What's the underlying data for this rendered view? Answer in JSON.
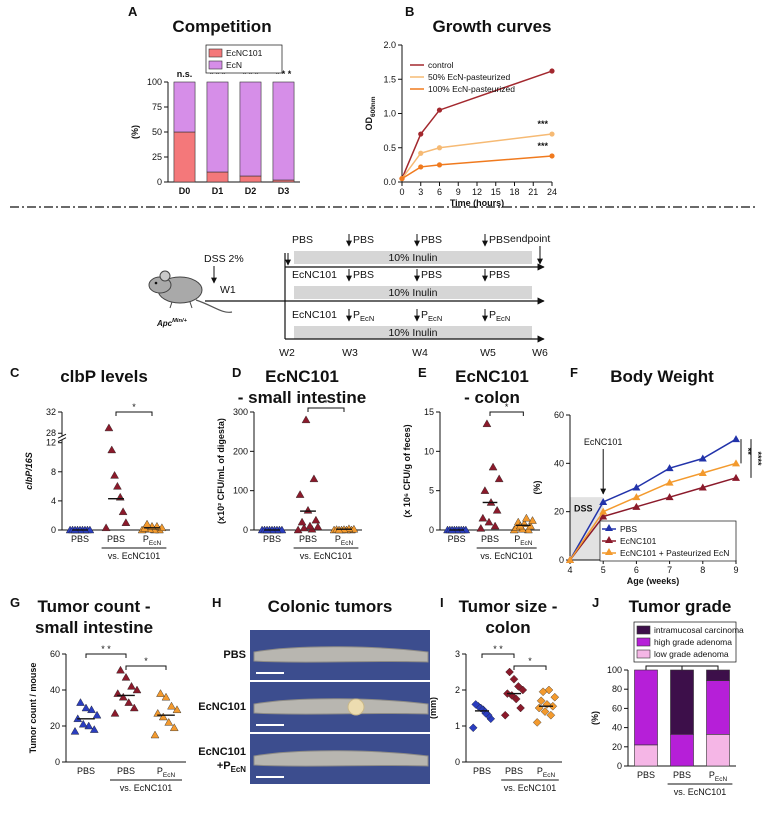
{
  "chart_data": [
    {
      "panel": "A",
      "type": "stacked_bar",
      "title": [
        "Competition"
      ],
      "ylabel": "(%)",
      "categories": [
        "D0",
        "D1",
        "D2",
        "D3"
      ],
      "series": [
        {
          "name": "EcNC101",
          "color": "#f4787a",
          "values": [
            50,
            10,
            6,
            2
          ]
        },
        {
          "name": "EcN",
          "color": "#d68ee8",
          "values": [
            50,
            90,
            94,
            98
          ]
        }
      ],
      "ylim": [
        0,
        100
      ],
      "yticks": [
        0,
        25,
        50,
        75,
        100
      ],
      "bar_annotations": [
        "n.s.",
        "* * *",
        "* * *",
        "* * *"
      ],
      "legend": "top"
    },
    {
      "panel": "B",
      "type": "line",
      "title": [
        "Growth curves"
      ],
      "xlabel": "Time (hours)",
      "ylabel": "OD",
      "ylabel_sub": "600nm",
      "x": [
        0,
        3,
        6,
        24
      ],
      "series": [
        {
          "name": "control",
          "color": "#a3282e",
          "values": [
            0.05,
            0.7,
            1.05,
            1.62
          ]
        },
        {
          "name": "50% EcN-pasteurized",
          "color": "#f6ba74",
          "values": [
            0.05,
            0.42,
            0.5,
            0.7
          ]
        },
        {
          "name": "100% EcN-pasteurized",
          "color": "#f07a1e",
          "values": [
            0.05,
            0.22,
            0.25,
            0.38
          ]
        }
      ],
      "xlim": [
        0,
        24
      ],
      "xticks": [
        0,
        3,
        6,
        9,
        12,
        15,
        18,
        21,
        24
      ],
      "ylim": [
        0,
        2
      ],
      "yticks": [
        {
          "value": 0,
          "label": "0.0"
        },
        {
          "value": 0.5,
          "label": "0.5"
        },
        {
          "value": 1,
          "label": "1.0"
        },
        {
          "value": 1.5,
          "label": "1.5"
        },
        {
          "value": 2,
          "label": "2.0"
        }
      ],
      "marker": "circle",
      "legend": "upper left",
      "annotations": [
        "***",
        "***"
      ]
    },
    {
      "panel": "C",
      "type": "dot",
      "title": [
        "clbP levels"
      ],
      "ylabel": "clbP/16S",
      "ylabel_italic": true,
      "groups": [
        {
          "name": "PBS",
          "color": "#2a3dbf",
          "values": [
            0,
            0,
            0,
            0,
            0,
            0,
            0,
            0,
            0
          ],
          "mean": 0
        },
        {
          "name": "PBS",
          "color": "#8b1a2b",
          "values": [
            0.3,
            1,
            2.5,
            4.5,
            6,
            7.5,
            11,
            29
          ],
          "mean": 4.3
        },
        {
          "name": "P",
          "name_sub": "EcN",
          "color": "#f39a2e",
          "values": [
            0,
            0,
            0,
            0.1,
            0.2,
            0.3,
            0.5,
            0.5,
            0.8
          ],
          "mean": 0.3
        }
      ],
      "ylim": [
        0,
        32
      ],
      "ybreak": [
        12,
        28
      ],
      "yticks": [
        0,
        4,
        8,
        12,
        28,
        32
      ],
      "marker": "triangle",
      "group_note": "vs. EcNC101",
      "annotations": [
        "*"
      ]
    },
    {
      "panel": "D",
      "type": "dot",
      "title": [
        "EcNC101",
        "- small intestine"
      ],
      "ylabel": "(x10² CFU/mL of digesta)",
      "groups": [
        {
          "name": "PBS",
          "color": "#2a3dbf",
          "values": [
            0,
            0,
            0,
            0,
            0,
            0,
            0,
            0,
            0
          ],
          "mean": 0
        },
        {
          "name": "PBS",
          "color": "#8b1a2b",
          "values": [
            0,
            2,
            5,
            8,
            10,
            20,
            25,
            50,
            90,
            130,
            280
          ],
          "mean": 48
        },
        {
          "name": "P",
          "name_sub": "EcN",
          "color": "#f39a2e",
          "values": [
            0,
            0,
            0,
            0,
            1,
            2,
            3,
            1,
            0
          ],
          "mean": 2
        }
      ],
      "ylim": [
        0,
        300
      ],
      "yticks": [
        0,
        100,
        200,
        300
      ],
      "marker": "triangle",
      "group_note": "vs. EcNC101",
      "annotations": [
        "*"
      ]
    },
    {
      "panel": "E",
      "type": "dot",
      "title": [
        "EcNC101",
        "- colon"
      ],
      "ylabel": "(x 10⁶ CFU/g of feces)",
      "groups": [
        {
          "name": "PBS",
          "color": "#2a3dbf",
          "values": [
            0,
            0,
            0,
            0,
            0,
            0,
            0,
            0,
            0
          ],
          "mean": 0
        },
        {
          "name": "PBS",
          "color": "#8b1a2b",
          "values": [
            0.2,
            0.5,
            1,
            1.5,
            2.5,
            3.5,
            5,
            6.5,
            8,
            13.5
          ],
          "mean": 3.5
        },
        {
          "name": "P",
          "name_sub": "EcN",
          "color": "#f39a2e",
          "values": [
            0,
            0,
            0.1,
            0.3,
            0.5,
            0.8,
            1,
            1.2,
            1.5,
            0.5
          ],
          "mean": 0.6
        }
      ],
      "ylim": [
        0,
        15
      ],
      "yticks": [
        0,
        5,
        10,
        15
      ],
      "marker": "triangle",
      "group_note": "vs. EcNC101",
      "annotations": [
        "*"
      ]
    },
    {
      "panel": "F",
      "type": "line",
      "title": [
        "Body Weight"
      ],
      "xlabel": "Age (weeks)",
      "ylabel": "(%)",
      "x": [
        4,
        5,
        6,
        7,
        8,
        9
      ],
      "series": [
        {
          "name": "PBS",
          "color": "#2233aa",
          "values": [
            0,
            24,
            30,
            38,
            42,
            50
          ]
        },
        {
          "name": "EcNC101",
          "color": "#8b1a2b",
          "values": [
            0,
            18,
            22,
            26,
            30,
            34
          ]
        },
        {
          "name": "EcNC101 + Pasteurized EcN",
          "color": "#f39a2e",
          "values": [
            0,
            20,
            26,
            32,
            36,
            40
          ]
        }
      ],
      "xlim": [
        4,
        9
      ],
      "xticks": [
        4,
        5,
        6,
        7,
        8,
        9
      ],
      "ylim": [
        0,
        60
      ],
      "yticks": [
        0,
        20,
        40,
        60
      ],
      "marker": "triangle",
      "legend": "lower right",
      "annotations": [
        "EcNC101",
        "DSS",
        "**",
        "****"
      ]
    },
    {
      "panel": "G",
      "type": "dot",
      "title": [
        "Tumor count -",
        "small intestine"
      ],
      "ylabel": "Tumor count / mouse",
      "groups": [
        {
          "name": "PBS",
          "color": "#2a3dbf",
          "values": [
            17,
            18,
            20,
            21,
            24,
            26,
            29,
            30,
            33
          ],
          "mean": 24
        },
        {
          "name": "PBS",
          "color": "#8b1a2b",
          "values": [
            27,
            30,
            33,
            36,
            38,
            40,
            42,
            47,
            51
          ],
          "mean": 37
        },
        {
          "name": "P",
          "name_sub": "EcN",
          "color": "#f39a2e",
          "values": [
            15,
            19,
            22,
            25,
            27,
            29,
            31,
            36,
            38
          ],
          "mean": 26
        }
      ],
      "ylim": [
        0,
        60
      ],
      "yticks": [
        0,
        20,
        40,
        60
      ],
      "marker": "triangle",
      "group_note": "vs. EcNC101",
      "annotations": [
        "* *",
        "*"
      ]
    },
    {
      "panel": "I",
      "type": "dot",
      "title": [
        "Tumor size -",
        "colon"
      ],
      "ylabel": "(mm)",
      "groups": [
        {
          "name": "PBS",
          "color": "#2a3dbf",
          "values": [
            0.95,
            1.2,
            1.3,
            1.35,
            1.45,
            1.5,
            1.55,
            1.6
          ],
          "mean": 1.42
        },
        {
          "name": "PBS",
          "color": "#8b1a2b",
          "values": [
            1.3,
            1.5,
            1.75,
            1.85,
            1.9,
            2.0,
            2.1,
            2.3,
            2.5
          ],
          "mean": 1.9
        },
        {
          "name": "P",
          "name_sub": "EcN",
          "color": "#f39a2e",
          "values": [
            1.1,
            1.3,
            1.4,
            1.5,
            1.55,
            1.6,
            1.7,
            1.8,
            2.0,
            1.95
          ],
          "mean": 1.55
        }
      ],
      "ylim": [
        0,
        3
      ],
      "yticks": [
        0,
        1,
        2,
        3
      ],
      "marker": "diamond",
      "group_note": "vs. EcNC101",
      "annotations": [
        "* *",
        "*"
      ]
    },
    {
      "panel": "J",
      "type": "stacked_bar",
      "title": [
        "Tumor grade"
      ],
      "ylabel": "(%)",
      "categories": [
        "PBS",
        "PBS",
        "P"
      ],
      "category_subs": [
        null,
        null,
        "EcN"
      ],
      "series": [
        {
          "name": "low grade adenoma",
          "color": "#f5b6e6",
          "values": [
            22,
            0,
            33
          ]
        },
        {
          "name": "high grade adenoma",
          "color": "#b61fd8",
          "values": [
            78,
            33,
            56
          ]
        },
        {
          "name": "intramucosal carcinoma",
          "color": "#3d0f4a",
          "values": [
            0,
            67,
            11
          ]
        }
      ],
      "ylim": [
        0,
        100
      ],
      "yticks": [
        0,
        20,
        40,
        60,
        80,
        100
      ],
      "legend": "top",
      "legend_reverse": true,
      "group_note": "vs. EcNC101",
      "annotations": [
        "*",
        "*"
      ]
    }
  ],
  "schema": {
    "treatment": "DSS 2%",
    "week1": "W1",
    "model": "Apc",
    "model_sup": "Min/+",
    "endpoint": "endpoint",
    "rows": [
      {
        "start": "PBS",
        "doses": [
          "PBS",
          "PBS",
          "PBS"
        ],
        "band": "10% Inulin"
      },
      {
        "start": "EcNC101",
        "doses": [
          "PBS",
          "PBS",
          "PBS"
        ],
        "band": "10% Inulin"
      },
      {
        "start": "EcNC101",
        "doses": [
          "P",
          "P",
          "P"
        ],
        "dose_sub": "EcN",
        "band": "10% Inulin"
      }
    ],
    "weeks": [
      "W2",
      "W3",
      "W4",
      "W5",
      "W6"
    ]
  },
  "image_panel": {
    "panel": "H",
    "title": "Colonic tumors",
    "rows": [
      {
        "lines": [
          "PBS"
        ]
      },
      {
        "lines": [
          "EcNC101"
        ]
      },
      {
        "lines": [
          "EcNC101",
          "+P"
        ],
        "sub": "EcN"
      }
    ]
  }
}
